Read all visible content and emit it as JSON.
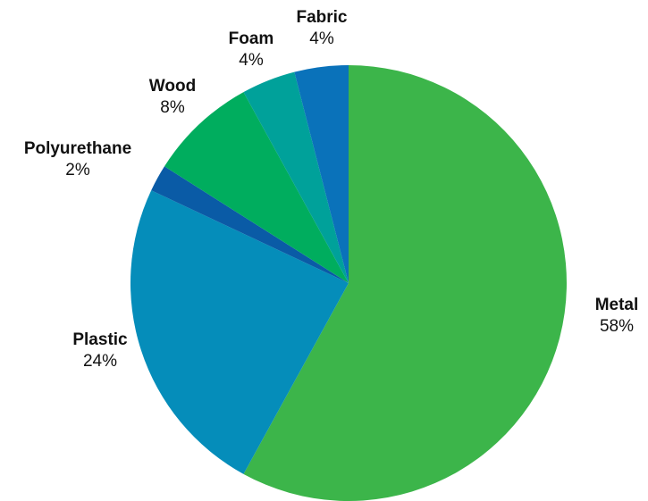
{
  "chart_data": {
    "type": "pie",
    "title": "",
    "start_angle_deg": 0,
    "direction": "clockwise",
    "slices": [
      {
        "label": "Metal",
        "value": 58,
        "display": "58%",
        "color": "#3CB54A"
      },
      {
        "label": "Plastic",
        "value": 24,
        "display": "24%",
        "color": "#058DBA"
      },
      {
        "label": "Polyurethane",
        "value": 2,
        "display": "2%",
        "color": "#0A5BA6"
      },
      {
        "label": "Wood",
        "value": 8,
        "display": "8%",
        "color": "#00AD5E"
      },
      {
        "label": "Foam",
        "value": 4,
        "display": "4%",
        "color": "#00A19A"
      },
      {
        "label": "Fabric",
        "value": 4,
        "display": "4%",
        "color": "#0A72BA"
      }
    ]
  }
}
